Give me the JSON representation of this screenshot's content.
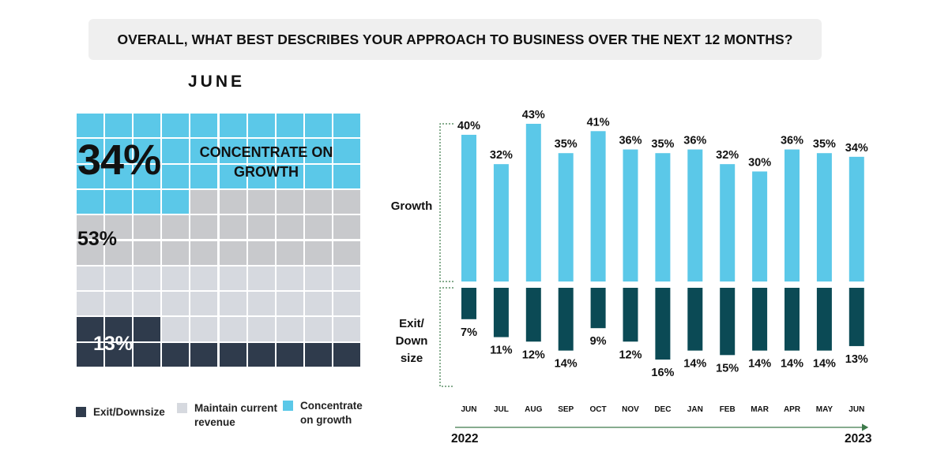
{
  "title": "OVERALL, WHAT BEST DESCRIBES YOUR APPROACH TO BUSINESS OVER THE NEXT 12 MONTHS?",
  "waffle": {
    "heading": "JUNE",
    "growth_pct": "34%",
    "growth_label": "CONCENTRATE ON GROWTH",
    "maintain_pct": "53%",
    "exit_pct": "13%",
    "values": {
      "growth": 34,
      "maintain": 53,
      "exit": 13
    }
  },
  "legend": [
    {
      "label": "Exit/Downsize",
      "color": "#2f3b4c"
    },
    {
      "label": "Maintain current revenue",
      "color": "#d6d9df"
    },
    {
      "label": "Concentrate on growth",
      "color": "#5bc8e8"
    }
  ],
  "colors": {
    "growth": "#5bc8e8",
    "exit": "#0b4a55",
    "waffle_exit": "#2f3b4c",
    "maintain_light": "#d6d9df",
    "maintain_dark": "#c8c9cc",
    "bracket": "#3d7a4a",
    "arrow": "#3d7a4a"
  },
  "chart_data": {
    "type": "bar",
    "categories": [
      "JUN",
      "JUL",
      "AUG",
      "SEP",
      "OCT",
      "NOV",
      "DEC",
      "JAN",
      "FEB",
      "MAR",
      "APR",
      "MAY",
      "JUN"
    ],
    "series": [
      {
        "name": "Growth",
        "values": [
          40,
          32,
          43,
          35,
          41,
          36,
          35,
          36,
          32,
          30,
          36,
          35,
          34
        ]
      },
      {
        "name": "Exit/Down size",
        "values": [
          7,
          11,
          12,
          14,
          9,
          12,
          16,
          14,
          15,
          14,
          14,
          14,
          13
        ]
      }
    ],
    "value_labels": {
      "growth": [
        "40%",
        "32%",
        "43%",
        "35%",
        "41%",
        "36%",
        "35%",
        "36%",
        "32%",
        "30%",
        "36%",
        "35%",
        "34%"
      ],
      "exit": [
        "7%",
        "11%",
        "12%",
        "14%",
        "9%",
        "12%",
        "16%",
        "14%",
        "15%",
        "14%",
        "14%",
        "14%",
        "13%"
      ]
    },
    "section_labels": {
      "growth": "Growth",
      "exit": "Exit/ Down size"
    },
    "year_start": "2022",
    "year_end": "2023"
  }
}
